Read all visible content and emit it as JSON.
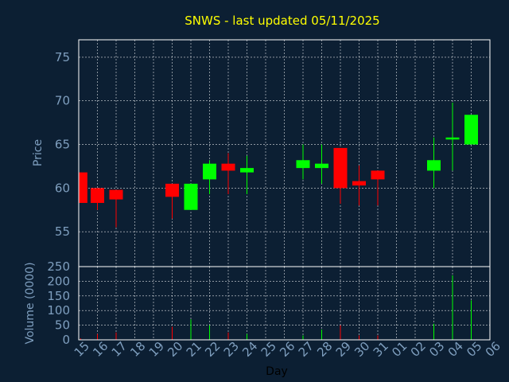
{
  "chart_data": {
    "type": "candlestick",
    "title": "SNWS - last updated 05/11/2025",
    "xlabel": "Day",
    "price_ylabel": "Price",
    "volume_ylabel": "Volume (0000)",
    "categories": [
      "15",
      "16",
      "17",
      "18",
      "19",
      "20",
      "21",
      "22",
      "23",
      "24",
      "25",
      "26",
      "27",
      "28",
      "29",
      "30",
      "31",
      "01",
      "02",
      "03",
      "04",
      "05",
      "06"
    ],
    "price_ylim": [
      51,
      77
    ],
    "price_ticks": [
      55,
      60,
      65,
      70,
      75
    ],
    "volume_ylim": [
      0,
      250
    ],
    "volume_ticks": [
      0,
      50,
      100,
      150,
      200,
      250
    ],
    "up_color": "#00ff00",
    "down_color": "#ff0000",
    "candles": [
      {
        "day": "15",
        "x": 0.1,
        "open": 61.8,
        "close": 58.3,
        "high": 61.8,
        "low": 58.3,
        "volume": 5
      },
      {
        "day": "16",
        "x": 1.0,
        "open": 60.0,
        "close": 58.3,
        "high": 60.0,
        "low": 57.5,
        "volume": 20
      },
      {
        "day": "17",
        "x": 2.0,
        "open": 59.8,
        "close": 58.7,
        "high": 59.8,
        "low": 55.5,
        "volume": 25
      },
      {
        "day": "20",
        "x": 5.0,
        "open": 60.5,
        "close": 59.0,
        "high": 60.5,
        "low": 56.5,
        "volume": 45
      },
      {
        "day": "21",
        "x": 6.0,
        "open": 57.5,
        "close": 60.5,
        "high": 60.5,
        "low": 57.5,
        "volume": 70
      },
      {
        "day": "22",
        "x": 7.0,
        "open": 61.0,
        "close": 62.8,
        "high": 63.2,
        "low": 59.3,
        "volume": 50
      },
      {
        "day": "23",
        "x": 8.0,
        "open": 62.8,
        "close": 62.0,
        "high": 64.0,
        "low": 59.3,
        "volume": 25
      },
      {
        "day": "24",
        "x": 9.0,
        "open": 61.8,
        "close": 62.3,
        "high": 63.7,
        "low": 59.3,
        "volume": 20
      },
      {
        "day": "27",
        "x": 12.0,
        "open": 62.3,
        "close": 63.2,
        "high": 65.0,
        "low": 61.0,
        "volume": 15
      },
      {
        "day": "28",
        "x": 13.0,
        "open": 62.3,
        "close": 62.8,
        "high": 65.0,
        "low": 60.5,
        "volume": 35
      },
      {
        "day": "29",
        "x": 14.0,
        "open": 64.6,
        "close": 60.0,
        "high": 64.6,
        "low": 58.2,
        "volume": 50
      },
      {
        "day": "30",
        "x": 15.0,
        "open": 60.8,
        "close": 60.3,
        "high": 62.6,
        "low": 58.0,
        "volume": 15
      },
      {
        "day": "31",
        "x": 16.0,
        "open": 62.0,
        "close": 61.0,
        "high": 62.0,
        "low": 58.0,
        "volume": 15
      },
      {
        "day": "03",
        "x": 19.0,
        "open": 62.0,
        "close": 63.2,
        "high": 65.8,
        "low": 60.0,
        "volume": 55
      },
      {
        "day": "04",
        "x": 20.0,
        "open": 65.6,
        "close": 65.8,
        "high": 69.8,
        "low": 62.0,
        "volume": 220
      },
      {
        "day": "05",
        "x": 21.0,
        "open": 65.0,
        "close": 68.4,
        "high": 68.4,
        "low": 65.0,
        "volume": 135
      }
    ]
  }
}
